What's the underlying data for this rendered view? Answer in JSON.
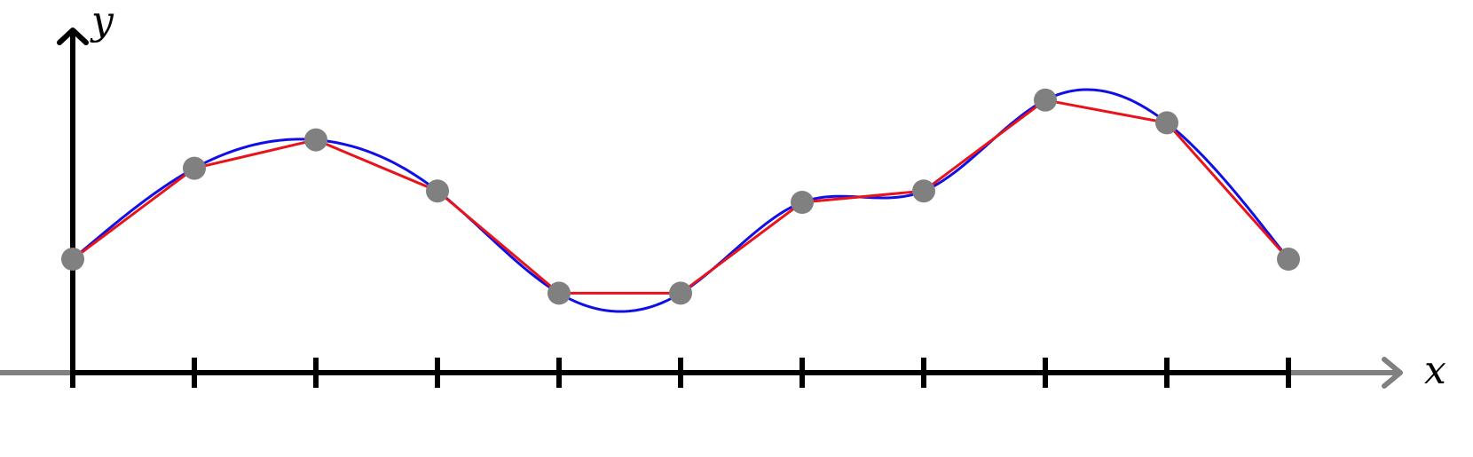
{
  "chart_data": {
    "type": "line",
    "x_axis_label": "x",
    "y_axis_label": "y",
    "x_ticks": [
      0,
      1,
      2,
      3,
      4,
      5,
      6,
      7,
      8,
      9,
      10
    ],
    "xlim": [
      0,
      10
    ],
    "ylim": [
      0,
      3.9
    ],
    "points": [
      {
        "x": 0,
        "y": 1.0
      },
      {
        "x": 1,
        "y": 1.8
      },
      {
        "x": 2,
        "y": 2.05
      },
      {
        "x": 3,
        "y": 1.6
      },
      {
        "x": 4,
        "y": 0.7
      },
      {
        "x": 5,
        "y": 0.7
      },
      {
        "x": 6,
        "y": 1.5
      },
      {
        "x": 7,
        "y": 1.6
      },
      {
        "x": 8,
        "y": 2.4
      },
      {
        "x": 9,
        "y": 2.2
      },
      {
        "x": 10,
        "y": 1.0
      }
    ],
    "series": [
      {
        "style": "piecewise-linear",
        "color": "#e8131b"
      },
      {
        "style": "smooth-spline",
        "color": "#1010e6"
      }
    ],
    "point_color": "#808080",
    "axis_color": "#000000",
    "axis_extension_color": "#808080",
    "grid": false,
    "legend": "none"
  }
}
